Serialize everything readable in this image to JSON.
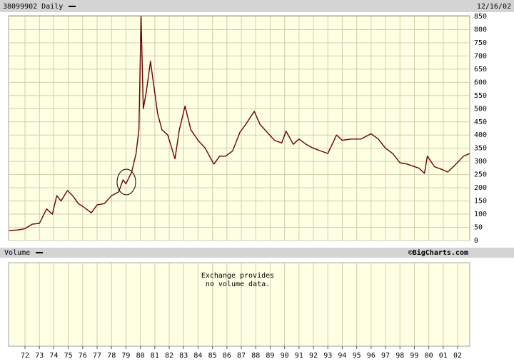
{
  "chart_data": {
    "type": "line",
    "title": "38099902 Daily",
    "date": "12/16/02",
    "volume_label": "Volume",
    "credit": "©BigCharts.com",
    "volume_note": [
      "Exchange provides",
      "no volume data."
    ],
    "x": [
      1970.9,
      1971.5,
      1972.0,
      1972.5,
      1973.0,
      1973.5,
      1973.9,
      1974.2,
      1974.5,
      1974.95,
      1975.3,
      1975.7,
      1976.0,
      1976.6,
      1977.0,
      1977.5,
      1978.0,
      1978.5,
      1978.8,
      1979.0,
      1979.4,
      1979.7,
      1979.9,
      1980.05,
      1980.2,
      1980.4,
      1980.7,
      1980.9,
      1981.2,
      1981.5,
      1981.9,
      1982.4,
      1982.7,
      1983.1,
      1983.5,
      1984.0,
      1984.5,
      1985.1,
      1985.5,
      1985.9,
      1986.4,
      1986.9,
      1987.3,
      1987.9,
      1988.3,
      1988.8,
      1989.3,
      1989.8,
      1990.1,
      1990.6,
      1991.0,
      1991.5,
      1992.0,
      1992.5,
      1993.0,
      1993.6,
      1994.0,
      1994.6,
      1995.3,
      1996.0,
      1996.5,
      1997.0,
      1997.5,
      1998.0,
      1998.5,
      1999.3,
      1999.7,
      1999.9,
      2000.4,
      2000.9,
      2001.3,
      2001.8,
      2002.4,
      2002.84
    ],
    "series": [
      {
        "color": "#6b0000",
        "values": [
          38,
          40,
          45,
          62,
          65,
          120,
          100,
          170,
          150,
          190,
          170,
          140,
          130,
          105,
          135,
          140,
          170,
          185,
          230,
          215,
          260,
          330,
          420,
          850,
          500,
          560,
          680,
          600,
          480,
          420,
          400,
          310,
          420,
          510,
          420,
          380,
          350,
          290,
          320,
          320,
          340,
          410,
          440,
          490,
          440,
          410,
          380,
          370,
          415,
          365,
          385,
          365,
          350,
          340,
          330,
          400,
          380,
          385,
          385,
          405,
          385,
          350,
          330,
          295,
          290,
          275,
          255,
          320,
          280,
          270,
          260,
          285,
          320,
          330
        ]
      }
    ],
    "xlim": [
      1970.86,
      2002.84
    ],
    "xticks": [
      {
        "value": 1972,
        "label": "72"
      },
      {
        "value": 1973,
        "label": "73"
      },
      {
        "value": 1974,
        "label": "74"
      },
      {
        "value": 1975,
        "label": "75"
      },
      {
        "value": 1976,
        "label": "76"
      },
      {
        "value": 1977,
        "label": "77"
      },
      {
        "value": 1978,
        "label": "78"
      },
      {
        "value": 1979,
        "label": "79"
      },
      {
        "value": 1980,
        "label": "80"
      },
      {
        "value": 1981,
        "label": "81"
      },
      {
        "value": 1982,
        "label": "82"
      },
      {
        "value": 1983,
        "label": "83"
      },
      {
        "value": 1984,
        "label": "84"
      },
      {
        "value": 1985,
        "label": "85"
      },
      {
        "value": 1986,
        "label": "86"
      },
      {
        "value": 1987,
        "label": "87"
      },
      {
        "value": 1988,
        "label": "88"
      },
      {
        "value": 1989,
        "label": "89"
      },
      {
        "value": 1990,
        "label": "90"
      },
      {
        "value": 1991,
        "label": "91"
      },
      {
        "value": 1992,
        "label": "92"
      },
      {
        "value": 1993,
        "label": "93"
      },
      {
        "value": 1994,
        "label": "94"
      },
      {
        "value": 1995,
        "label": "95"
      },
      {
        "value": 1996,
        "label": "96"
      },
      {
        "value": 1997,
        "label": "97"
      },
      {
        "value": 1998,
        "label": "98"
      },
      {
        "value": 1999,
        "label": "99"
      },
      {
        "value": 2000,
        "label": "00"
      },
      {
        "value": 2001,
        "label": "01"
      },
      {
        "value": 2002,
        "label": "02"
      }
    ],
    "ylim": [
      0,
      850
    ],
    "yticks": [
      0,
      50,
      100,
      150,
      200,
      250,
      300,
      350,
      400,
      450,
      500,
      550,
      600,
      650,
      700,
      750,
      800,
      850
    ],
    "grid": true
  }
}
